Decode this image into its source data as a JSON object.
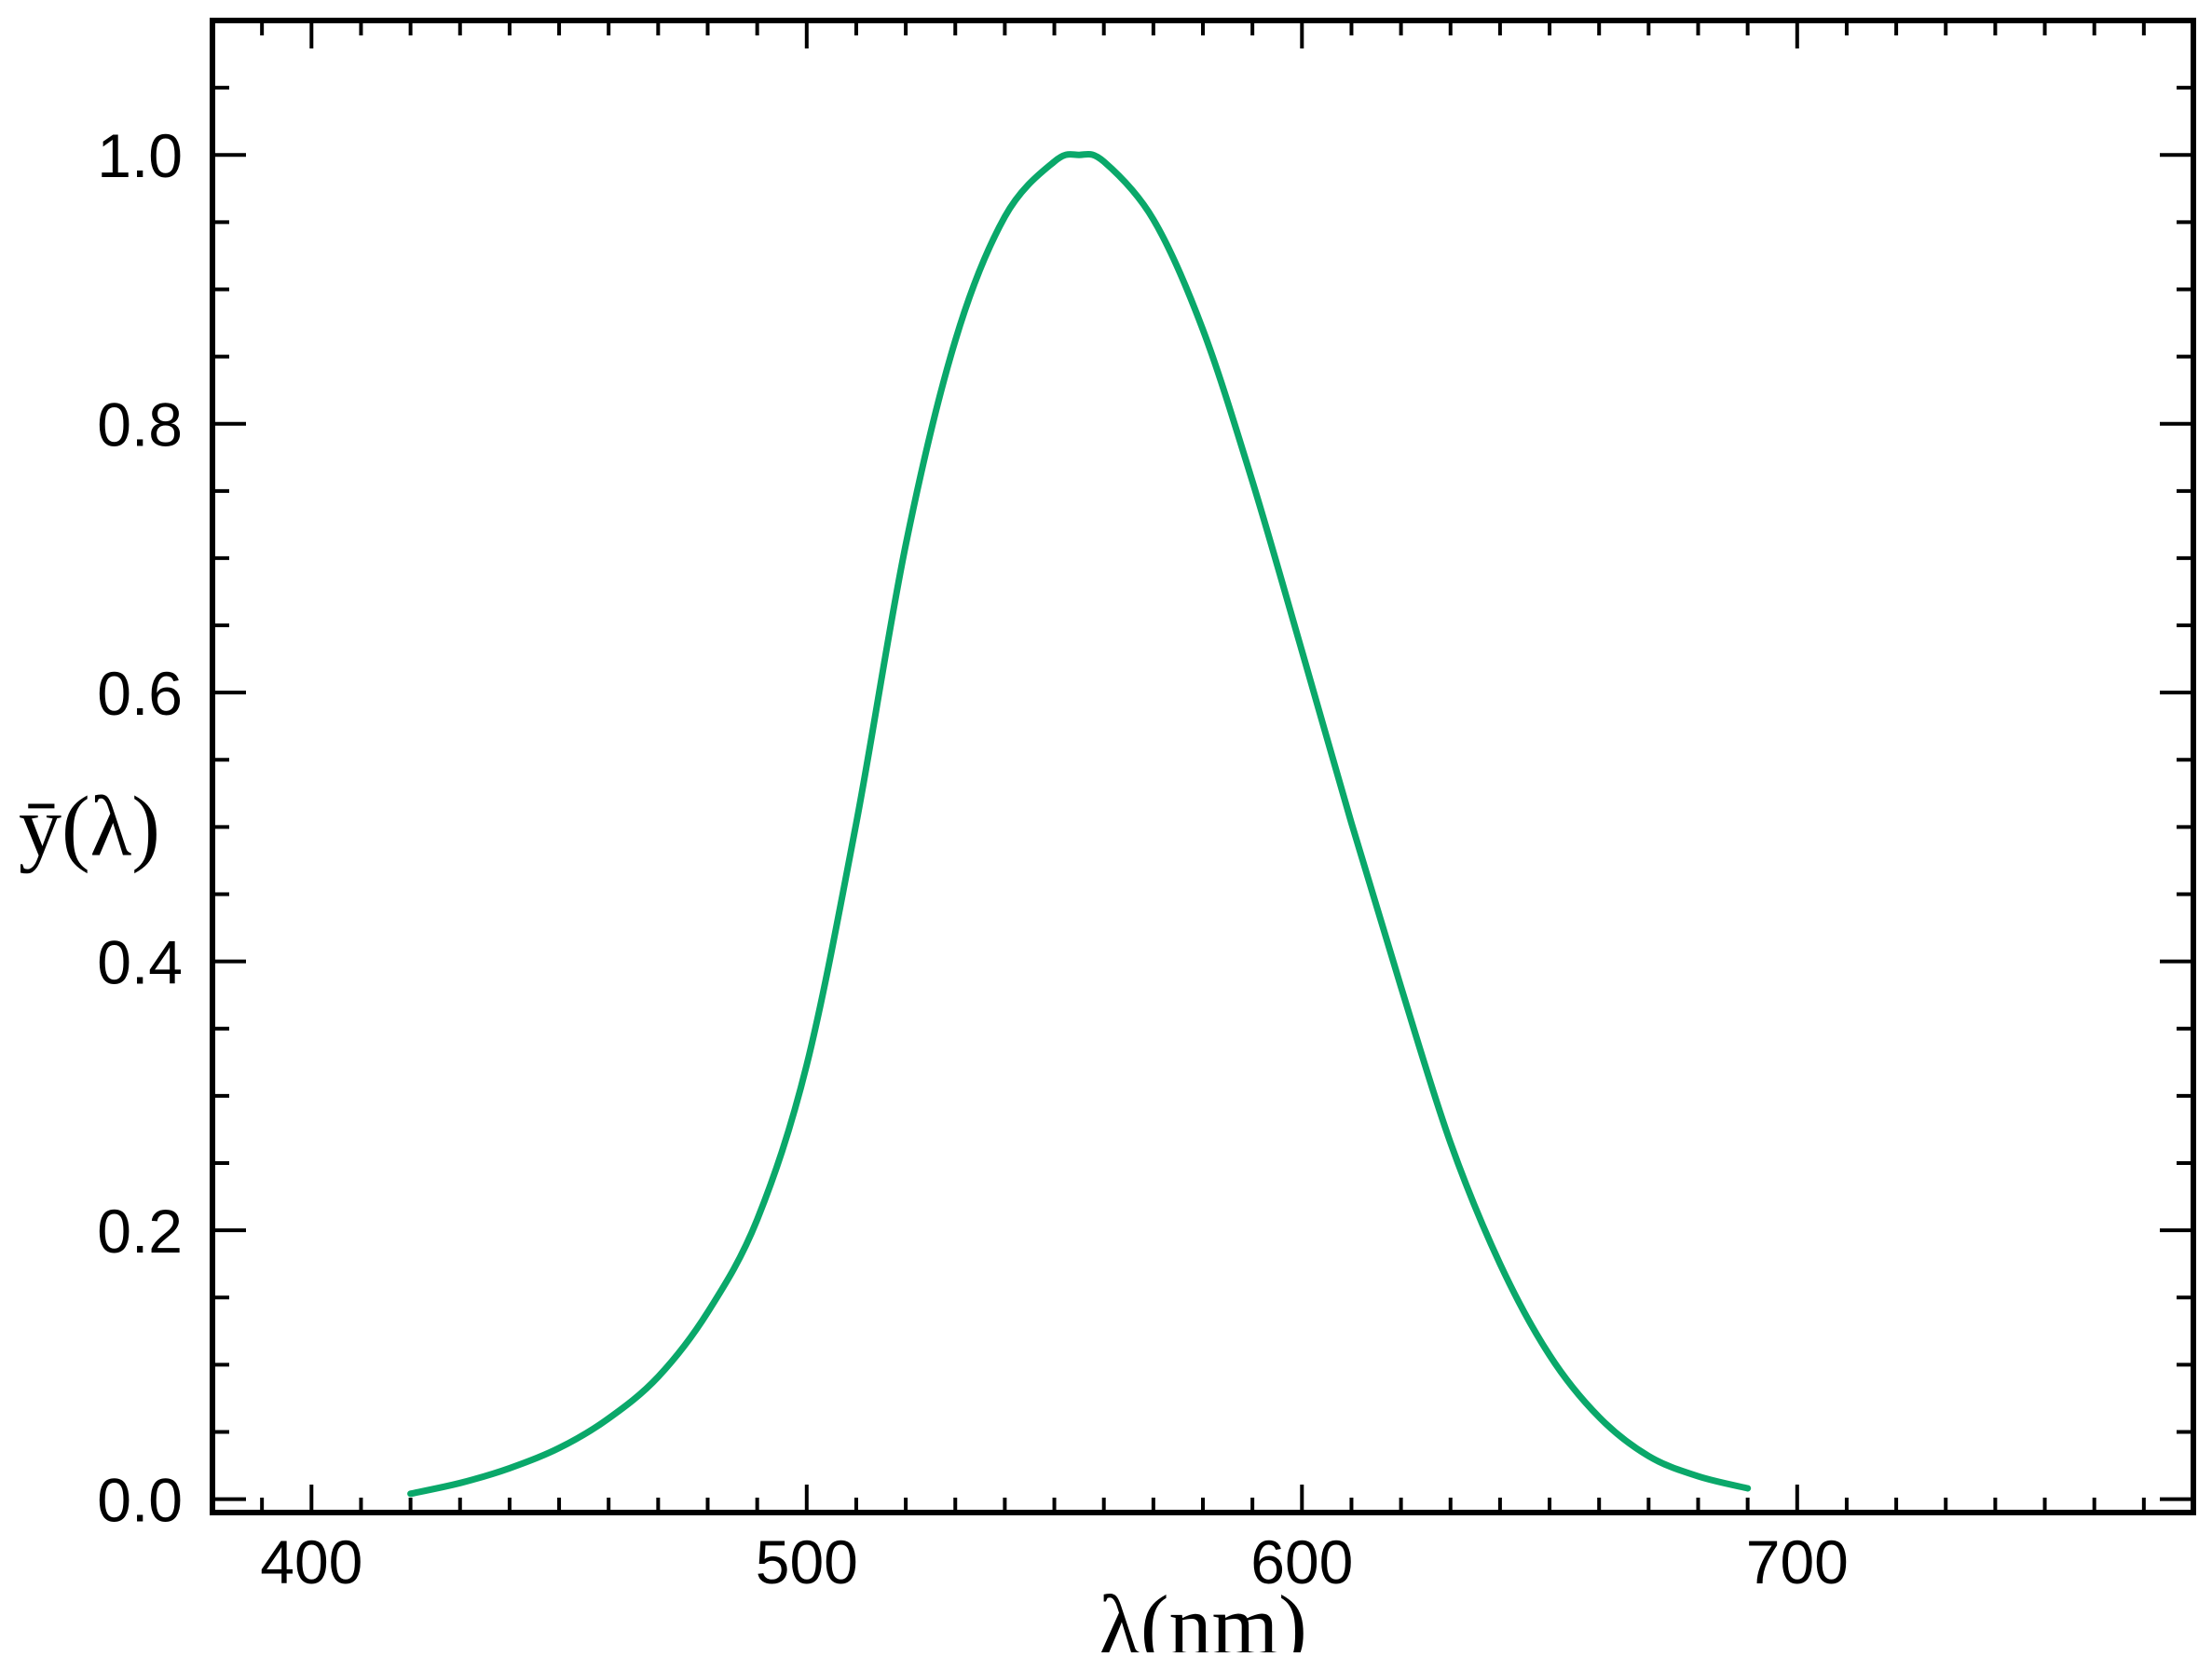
{
  "chart_data": {
    "type": "line",
    "title": "",
    "xlabel": "λ(nm)",
    "ylabel": "ȳ(λ)",
    "xlim": [
      380,
      780
    ],
    "ylim": [
      -0.01,
      1.1
    ],
    "x_ticks": [
      "400",
      "500",
      "600",
      "700"
    ],
    "y_ticks": [
      "0.0",
      "0.2",
      "0.4",
      "0.6",
      "0.8",
      "1.0"
    ],
    "grid": false,
    "legend": "none",
    "series": [
      {
        "color": "#0aa86a",
        "x": [
          420,
          430,
          440,
          450,
          460,
          470,
          480,
          490,
          500,
          510,
          520,
          530,
          540,
          550,
          555,
          560,
          570,
          580,
          590,
          600,
          610,
          620,
          630,
          640,
          650,
          660,
          670,
          680,
          690
        ],
        "y": [
          0.004,
          0.012,
          0.023,
          0.038,
          0.06,
          0.091,
          0.139,
          0.208,
          0.323,
          0.503,
          0.71,
          0.862,
          0.954,
          0.995,
          1.0,
          0.995,
          0.952,
          0.87,
          0.757,
          0.631,
          0.503,
          0.381,
          0.265,
          0.175,
          0.107,
          0.061,
          0.032,
          0.017,
          0.008
        ]
      }
    ]
  }
}
